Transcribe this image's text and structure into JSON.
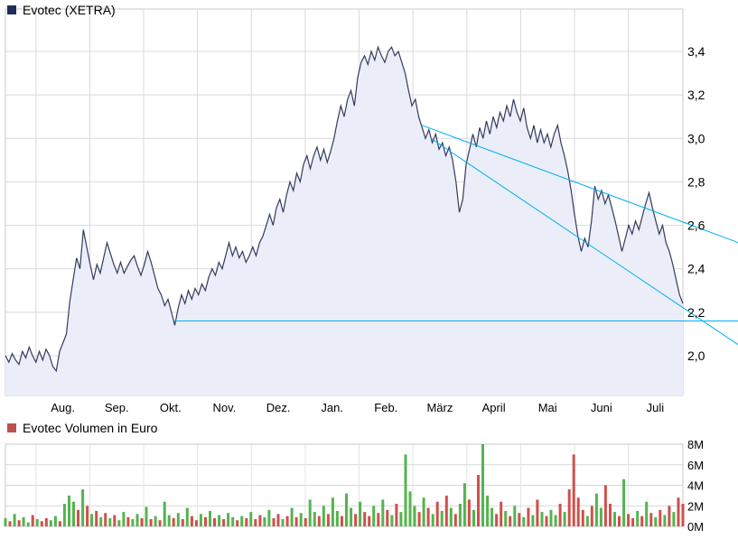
{
  "header": {
    "title": "Evotec (XETRA)",
    "legend_color": "#1f2d5c"
  },
  "volume_header": {
    "title": "Evotec Volumen in Euro",
    "legend_color": "#c0504d"
  },
  "chart_data": {
    "type": "area",
    "title": "Evotec (XETRA)",
    "x_tick_labels": [
      "Aug.",
      "Sep.",
      "Okt.",
      "Nov.",
      "Dez.",
      "Jan.",
      "Feb.",
      "März",
      "April",
      "Mai",
      "Juni",
      "Juli"
    ],
    "y_ticks": [
      {
        "value": 3.4,
        "label": "3,4"
      },
      {
        "value": 3.2,
        "label": "3,2"
      },
      {
        "value": 3.0,
        "label": "3,0"
      },
      {
        "value": 2.8,
        "label": "2,8"
      },
      {
        "value": 2.6,
        "label": "2,6"
      },
      {
        "value": 2.4,
        "label": "2,4"
      },
      {
        "value": 2.2,
        "label": "2,2"
      },
      {
        "value": 2.0,
        "label": "2,0"
      }
    ],
    "ylim_visible": [
      2.0,
      3.4
    ],
    "price_line_color": "#343b5c",
    "area_fill": "#ebeef8",
    "grid_color": "#d9d9d9",
    "border_color": "#c9c9c9",
    "prices": [
      2.0,
      1.97,
      2.01,
      1.98,
      1.96,
      2.02,
      1.99,
      2.04,
      2.0,
      1.97,
      2.02,
      1.98,
      2.03,
      2.0,
      1.95,
      1.93,
      2.02,
      2.06,
      2.1,
      2.25,
      2.35,
      2.45,
      2.4,
      2.58,
      2.5,
      2.42,
      2.35,
      2.42,
      2.38,
      2.45,
      2.52,
      2.47,
      2.42,
      2.38,
      2.43,
      2.38,
      2.41,
      2.44,
      2.46,
      2.41,
      2.37,
      2.42,
      2.48,
      2.43,
      2.37,
      2.31,
      2.28,
      2.23,
      2.26,
      2.2,
      2.14,
      2.22,
      2.28,
      2.24,
      2.3,
      2.26,
      2.31,
      2.28,
      2.33,
      2.3,
      2.36,
      2.4,
      2.37,
      2.43,
      2.4,
      2.46,
      2.52,
      2.46,
      2.5,
      2.45,
      2.48,
      2.43,
      2.46,
      2.5,
      2.46,
      2.52,
      2.55,
      2.6,
      2.65,
      2.6,
      2.68,
      2.72,
      2.66,
      2.74,
      2.8,
      2.76,
      2.84,
      2.8,
      2.88,
      2.92,
      2.86,
      2.92,
      2.96,
      2.9,
      2.95,
      2.89,
      2.94,
      3.0,
      3.08,
      3.15,
      3.1,
      3.18,
      3.22,
      3.15,
      3.28,
      3.35,
      3.38,
      3.34,
      3.4,
      3.36,
      3.42,
      3.38,
      3.35,
      3.4,
      3.42,
      3.38,
      3.4,
      3.35,
      3.3,
      3.22,
      3.15,
      3.18,
      3.1,
      3.05,
      3.0,
      3.04,
      2.98,
      3.02,
      2.95,
      2.98,
      2.92,
      2.96,
      2.9,
      2.8,
      2.66,
      2.72,
      2.88,
      2.95,
      3.02,
      2.96,
      3.05,
      3.0,
      3.08,
      3.02,
      3.1,
      3.05,
      3.12,
      3.08,
      3.15,
      3.1,
      3.18,
      3.12,
      3.08,
      3.14,
      3.05,
      3.0,
      3.06,
      2.98,
      3.04,
      2.98,
      3.02,
      2.96,
      3.02,
      3.06,
      2.98,
      2.92,
      2.85,
      2.76,
      2.65,
      2.55,
      2.48,
      2.54,
      2.5,
      2.62,
      2.78,
      2.72,
      2.76,
      2.7,
      2.74,
      2.68,
      2.62,
      2.55,
      2.48,
      2.54,
      2.6,
      2.56,
      2.62,
      2.58,
      2.64,
      2.7,
      2.75,
      2.68,
      2.62,
      2.56,
      2.6,
      2.52,
      2.48,
      2.42,
      2.35,
      2.28,
      2.24
    ],
    "trendlines": {
      "color": "#00b0f0",
      "lines": [
        {
          "x1": 0.615,
          "p1": 3.06,
          "x2": 1.082,
          "p2": 2.52
        },
        {
          "x1": 0.628,
          "p1": 3.0,
          "x2": 1.082,
          "p2": 2.05
        },
        {
          "x1": 0.249,
          "p1": 2.16,
          "x2": 1.082,
          "p2": 2.16
        }
      ]
    },
    "volume": {
      "title": "Evotec Volumen in Euro",
      "y_ticks": [
        {
          "value": 8,
          "label": "8M"
        },
        {
          "value": 6,
          "label": "6M"
        },
        {
          "value": 4,
          "label": "4M"
        },
        {
          "value": 2,
          "label": "2M"
        },
        {
          "value": 0,
          "label": "0M"
        }
      ],
      "up_color": "#54b44e",
      "down_color": "#d0504b",
      "values": [
        0.8,
        0.5,
        1.2,
        0.6,
        0.9,
        0.4,
        1.1,
        0.7,
        0.5,
        0.8,
        0.6,
        1.0,
        0.5,
        2.2,
        3.0,
        2.4,
        1.6,
        3.6,
        2.0,
        1.2,
        1.5,
        0.9,
        1.3,
        0.8,
        1.1,
        0.6,
        1.4,
        0.9,
        0.7,
        1.2,
        0.8,
        1.9,
        0.7,
        1.0,
        0.6,
        2.4,
        1.1,
        0.8,
        1.3,
        0.7,
        1.8,
        1.0,
        0.6,
        1.2,
        0.9,
        1.5,
        0.8,
        1.1,
        0.7,
        1.3,
        0.9,
        0.6,
        1.0,
        0.8,
        1.4,
        0.7,
        1.1,
        0.9,
        1.6,
        0.8,
        1.2,
        0.7,
        1.0,
        1.8,
        0.9,
        1.3,
        0.8,
        2.6,
        1.4,
        1.0,
        2.0,
        1.2,
        2.8,
        1.5,
        1.0,
        3.2,
        1.8,
        1.2,
        2.4,
        1.4,
        1.0,
        2.0,
        1.3,
        2.6,
        1.6,
        1.1,
        2.2,
        1.4,
        7.0,
        3.4,
        2.0,
        1.4,
        2.8,
        1.8,
        1.2,
        2.4,
        1.5,
        3.0,
        1.8,
        1.2,
        2.2,
        4.2,
        2.6,
        1.6,
        5.0,
        8.0,
        3.0,
        1.8,
        1.2,
        2.4,
        1.5,
        1.0,
        2.0,
        1.3,
        0.9,
        1.8,
        1.1,
        2.6,
        1.4,
        1.0,
        1.6,
        1.1,
        2.2,
        1.4,
        3.6,
        7.0,
        2.8,
        1.6,
        1.0,
        2.0,
        3.2,
        1.8,
        4.0,
        2.2,
        1.4,
        1.0,
        4.6,
        1.2,
        0.8,
        1.5,
        1.0,
        2.4,
        1.3,
        0.9,
        1.6,
        1.1,
        2.0,
        1.4,
        2.8,
        2.2
      ],
      "directions": "grgrggrgrrggrgggrgrgrgrgrggrggrgrgrggrgrgrrgrgrgrggrgrgrrggrrgrgrgrggrgrggrggrgrrgrgrgrggggrgrgrgrgrggrgrgggrrgrgrgrgrgrggrgrrrrgrggrrgrgrrgrgrgrgrgrrr"
    }
  }
}
